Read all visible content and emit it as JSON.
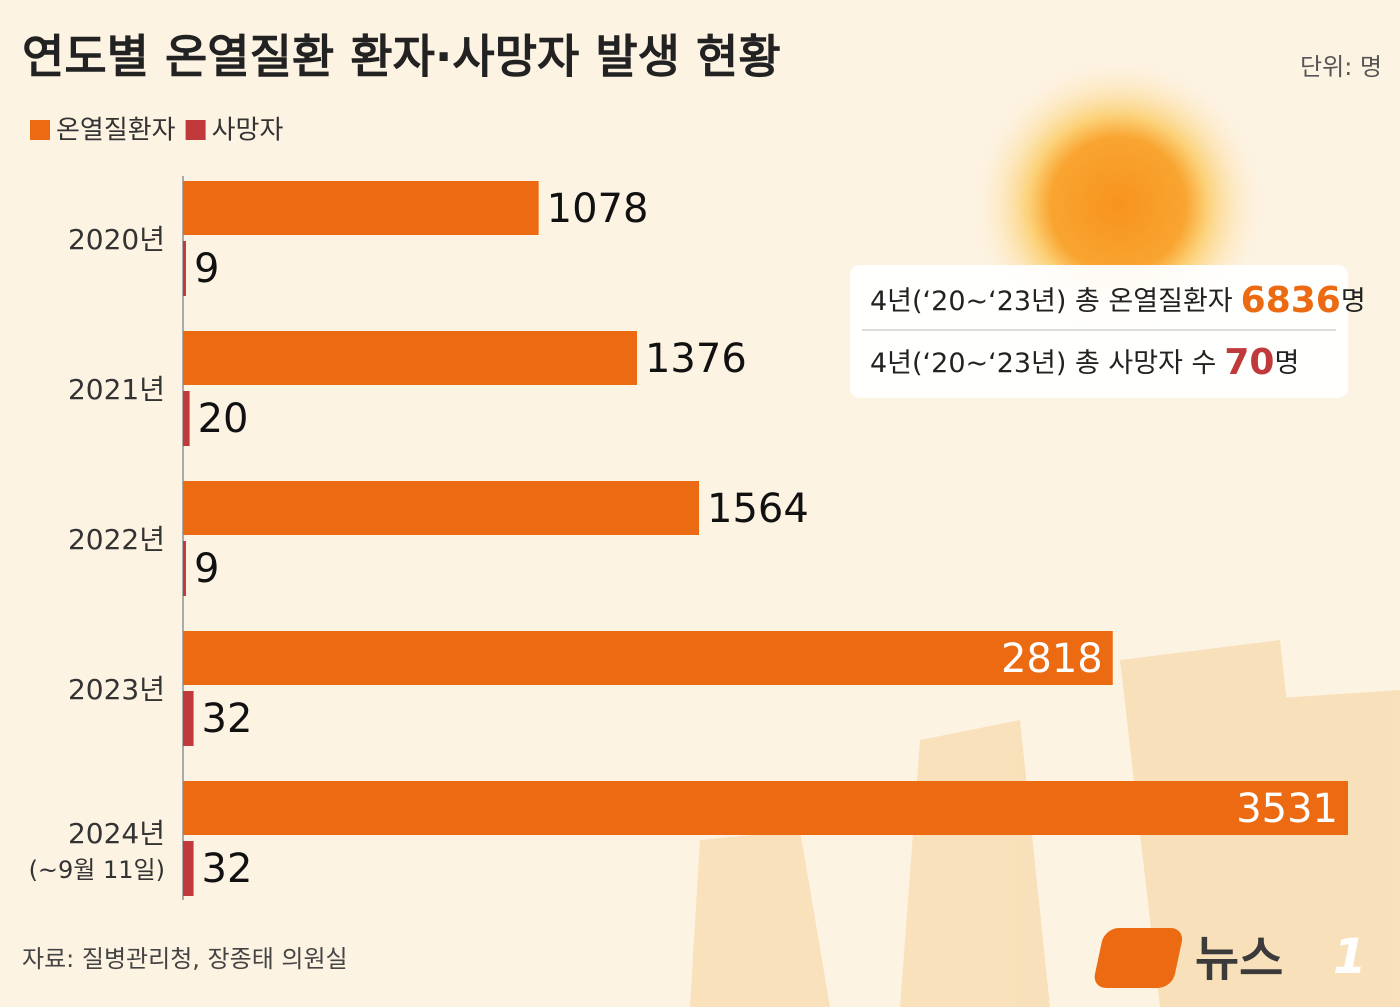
{
  "chart_data": {
    "type": "hbar-grouped",
    "title": "연도별 온열질환 환자·사망자 발생 현황",
    "unit": "단위: 명",
    "categories": [
      "2020년",
      "2021년",
      "2022년",
      "2023년",
      "2024년\n(~9월 11일)"
    ],
    "series": [
      {
        "name": "온열질환자",
        "color": "#ec6b12",
        "values": [
          1078,
          1376,
          1564,
          2818,
          3531
        ]
      },
      {
        "name": "사망자",
        "color": "#c0393b",
        "values": [
          9,
          20,
          9,
          32,
          32
        ]
      }
    ],
    "summary": [
      {
        "prefix": "4년(‘20~‘23년) 총 온열질환자",
        "value": 6836,
        "suffix": "명",
        "color": "#ec6b12"
      },
      {
        "prefix": "4년(‘20~‘23년)  총 사망자 수",
        "value": 70,
        "suffix": "명",
        "color": "#c0393b"
      }
    ],
    "source": "자료: 질병관리청, 장종태 의원실",
    "logo": {
      "text": "뉴스",
      "mark": "1"
    }
  }
}
